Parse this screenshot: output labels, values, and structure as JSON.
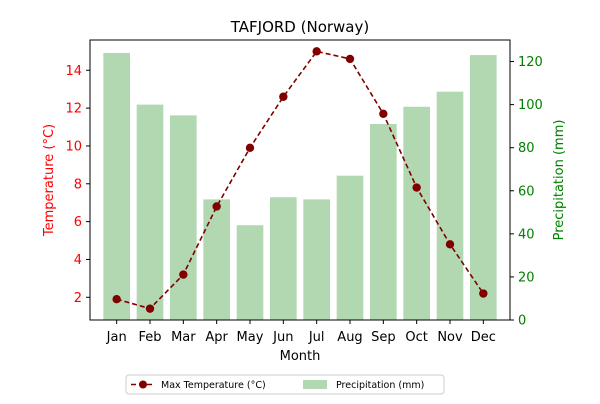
{
  "chart_data": {
    "type": "bar+line",
    "title": "TAFJORD (Norway)",
    "xlabel": "Month",
    "ylabel_left": "Temperature (°C)",
    "ylabel_right": "Precipitation (mm)",
    "categories": [
      "Jan",
      "Feb",
      "Mar",
      "Apr",
      "May",
      "Jun",
      "Jul",
      "Aug",
      "Sep",
      "Oct",
      "Nov",
      "Dec"
    ],
    "series": [
      {
        "name": "Max Temperature (°C)",
        "type": "line",
        "axis": "left",
        "values": [
          1.9,
          1.4,
          3.2,
          6.8,
          9.9,
          12.6,
          15.0,
          14.6,
          11.7,
          7.8,
          4.8,
          2.2
        ]
      },
      {
        "name": "Precipitation (mm)",
        "type": "bar",
        "axis": "right",
        "values": [
          124,
          100,
          95,
          56,
          44,
          57,
          56,
          67,
          91,
          99,
          106,
          123
        ]
      }
    ],
    "ylim_left": [
      0.8,
      15.6
    ],
    "ylim_right": [
      0,
      130
    ],
    "yticks_left": [
      2,
      4,
      6,
      8,
      10,
      12,
      14
    ],
    "yticks_right": [
      0,
      20,
      40,
      60,
      80,
      100,
      120
    ],
    "grid": false,
    "legend_placement": "bottom-center",
    "colors": {
      "line": "#800000",
      "bars": "#b2d8b2",
      "left_axis": "#ff0000",
      "right_axis": "#008000"
    }
  }
}
